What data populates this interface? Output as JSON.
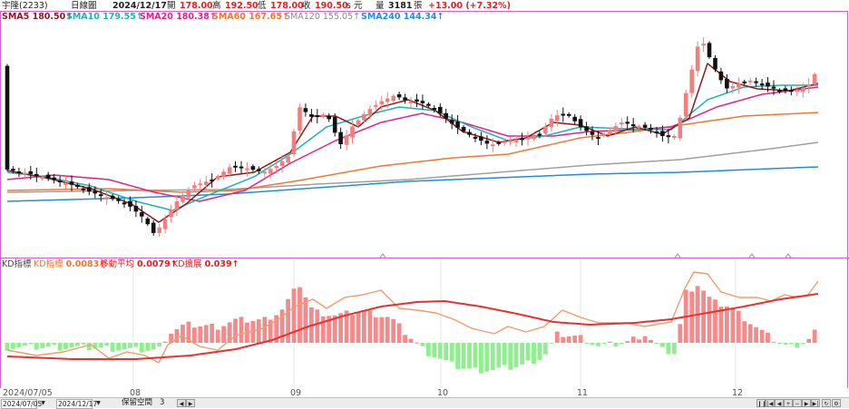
{
  "header": {
    "stock_name": "宇隆(2233)",
    "period": "日線圖",
    "date": "2024/12/17",
    "open_label": "開",
    "open_value": "178.00",
    "high_label": "高",
    "high_value": "192.50",
    "low_label": "低",
    "low_value": "178.00",
    "close_label": "收",
    "close_value": "190.50",
    "close_unit": "s 元",
    "volume_label": "量",
    "volume_value": "3181",
    "volume_unit": "張",
    "change": "+13.00 (+7.32%)"
  },
  "ma_legend": [
    {
      "label": "SMA5",
      "value": "180.50↑",
      "color": "#8b1a1a"
    },
    {
      "label": "SMA10",
      "value": "179.55↑",
      "color": "#20b2b2"
    },
    {
      "label": "SMA20",
      "value": "180.38↑",
      "color": "#e0218a"
    },
    {
      "label": "SMA60",
      "value": "167.65↑",
      "color": "#f07830"
    },
    {
      "label": "SMA120",
      "value": "155.05↑",
      "color": "#9a9a9a"
    },
    {
      "label": "SMA240",
      "value": "144.34↑",
      "color": "#1e90d8"
    }
  ],
  "indicator": {
    "name": "KD指標",
    "items": [
      {
        "label": "KD指標",
        "value": "0.0083↑",
        "color": "#f07830"
      },
      {
        "label": "移動平均",
        "value": "0.0079↑",
        "color": "#e02020"
      },
      {
        "label": "KD擴展",
        "value": "0.039↑",
        "color": "#e02020"
      }
    ]
  },
  "dates": {
    "start": "2024/07/05",
    "months": [
      "08",
      "09",
      "10",
      "11",
      "12"
    ]
  },
  "bottom_bar": {
    "from_date": "2024/07/05",
    "to_date": "2024/12/17",
    "keep_label": "保留空間",
    "keep_value": "3"
  },
  "colors": {
    "up": "#f08080",
    "down": "#111111",
    "osc_up": "#f28b8b",
    "osc_down": "#90ee90",
    "frame": "#cc66cc"
  }
}
